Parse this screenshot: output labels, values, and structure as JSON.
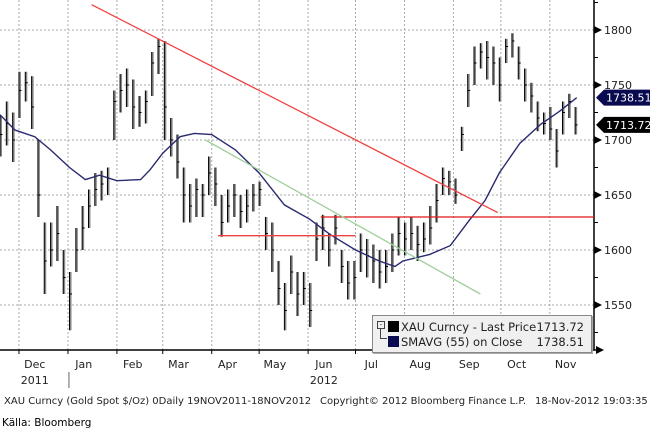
{
  "chart_data": {
    "type": "bar",
    "subtype": "ohlc-price-bars",
    "title": "XAU Curncy (Gold Spot $/Oz) 0Daily 19NOV2011-18NOV2012",
    "ylabel": "",
    "ylim": [
      1510,
      1828
    ],
    "yticks": [
      1550,
      1600,
      1650,
      1700,
      1750,
      1800
    ],
    "x_unit": "days since 19-Nov-2011",
    "xlim": [
      0,
      368
    ],
    "months": [
      {
        "label": "Dec",
        "day": 22
      },
      {
        "label": "Jan",
        "day": 53
      },
      {
        "label": "Feb",
        "day": 84
      },
      {
        "label": "Mar",
        "day": 113
      },
      {
        "label": "Apr",
        "day": 144
      },
      {
        "label": "May",
        "day": 174
      },
      {
        "label": "Jun",
        "day": 205
      },
      {
        "label": "Jul",
        "day": 235
      },
      {
        "label": "Aug",
        "day": 266
      },
      {
        "label": "Sep",
        "day": 297
      },
      {
        "label": "Oct",
        "day": 327
      },
      {
        "label": "Nov",
        "day": 358
      }
    ],
    "years": [
      {
        "label": "2011",
        "day": 22
      },
      {
        "label": "2012",
        "day": 205
      }
    ],
    "grid_days": [
      12,
      43,
      74,
      103,
      134,
      164,
      195,
      225,
      256,
      287,
      317,
      348
    ],
    "grid": true,
    "bar_day_step": 4,
    "bars": {
      "low": [
        1685,
        1695,
        1680,
        1720,
        1735,
        1710,
        1630,
        1560,
        1585,
        1590,
        1560,
        1527,
        1580,
        1600,
        1620,
        1640,
        1645,
        1650,
        1700,
        1725,
        1730,
        1710,
        1712,
        1715,
        1740,
        1760,
        1700,
        1685,
        1665,
        1625,
        1625,
        1630,
        1630,
        1650,
        1640,
        1612,
        1625,
        1630,
        1620,
        1625,
        1635,
        1640,
        1600,
        1580,
        1550,
        1527,
        1560,
        1540,
        1550,
        1530,
        1590,
        1600,
        1585,
        1605,
        1570,
        1555,
        1555,
        1580,
        1575,
        1570,
        1565,
        1570,
        1580,
        1595,
        1595,
        1600,
        1590,
        1598,
        1605,
        1625,
        1650,
        1650,
        1642,
        1690,
        1730,
        1750,
        1765,
        1755,
        1750,
        1735,
        1770,
        1775,
        1755,
        1735,
        1725,
        1708,
        1705,
        1700,
        1675,
        1705,
        1720,
        1705
      ],
      "high": [
        1722,
        1735,
        1725,
        1762,
        1762,
        1758,
        1700,
        1625,
        1625,
        1640,
        1600,
        1580,
        1620,
        1640,
        1655,
        1670,
        1672,
        1675,
        1745,
        1760,
        1765,
        1755,
        1740,
        1745,
        1780,
        1792,
        1790,
        1720,
        1705,
        1675,
        1660,
        1665,
        1660,
        1685,
        1675,
        1650,
        1655,
        1660,
        1650,
        1655,
        1660,
        1662,
        1630,
        1625,
        1590,
        1570,
        1595,
        1580,
        1580,
        1570,
        1625,
        1632,
        1615,
        1632,
        1600,
        1590,
        1590,
        1615,
        1610,
        1605,
        1600,
        1600,
        1615,
        1630,
        1625,
        1630,
        1622,
        1625,
        1640,
        1660,
        1675,
        1672,
        1665,
        1712,
        1760,
        1785,
        1788,
        1790,
        1785,
        1775,
        1792,
        1797,
        1785,
        1765,
        1752,
        1735,
        1725,
        1730,
        1710,
        1735,
        1742,
        1730
      ],
      "close": [
        1705,
        1715,
        1700,
        1745,
        1752,
        1730,
        1650,
        1590,
        1600,
        1615,
        1575,
        1560,
        1600,
        1620,
        1640,
        1655,
        1660,
        1665,
        1735,
        1745,
        1750,
        1730,
        1725,
        1735,
        1770,
        1785,
        1730,
        1700,
        1680,
        1650,
        1640,
        1655,
        1650,
        1670,
        1660,
        1625,
        1640,
        1650,
        1635,
        1640,
        1650,
        1655,
        1615,
        1600,
        1565,
        1545,
        1580,
        1560,
        1565,
        1545,
        1610,
        1620,
        1600,
        1620,
        1585,
        1570,
        1575,
        1600,
        1595,
        1590,
        1580,
        1585,
        1600,
        1615,
        1610,
        1615,
        1605,
        1610,
        1620,
        1645,
        1665,
        1662,
        1650,
        1705,
        1745,
        1770,
        1780,
        1775,
        1770,
        1750,
        1785,
        1790,
        1770,
        1750,
        1740,
        1720,
        1715,
        1710,
        1690,
        1725,
        1735,
        1713.72
      ]
    },
    "sma_series": {
      "days": [
        0,
        9.5,
        22,
        32,
        44,
        54,
        63,
        74,
        89,
        95,
        103,
        114,
        123,
        134,
        149,
        164,
        180,
        196,
        209,
        225,
        240,
        250,
        255,
        272,
        285,
        297,
        307,
        316,
        329,
        342,
        354,
        365
      ],
      "values": [
        1723,
        1709,
        1703,
        1691,
        1675,
        1664,
        1668,
        1663,
        1664,
        1673,
        1688,
        1703,
        1706,
        1705,
        1691,
        1670,
        1641,
        1628,
        1614,
        1600,
        1590,
        1585,
        1590,
        1596,
        1604,
        1627,
        1645,
        1670,
        1697,
        1714,
        1726,
        1738.51
      ]
    },
    "trendlines": [
      {
        "name": "resistance-downtrend",
        "color": "#f04040",
        "from": [
          58,
          1823
        ],
        "to": [
          315,
          1634
        ]
      },
      {
        "name": "support-1613",
        "color": "#f04040",
        "from": [
          138,
          1613
        ],
        "to": [
          225,
          1613
        ]
      },
      {
        "name": "level-1630",
        "color": "#e01818",
        "from": [
          203,
          1630
        ],
        "to": [
          376,
          1630
        ]
      },
      {
        "name": "green-channel",
        "color": "#9fd09a",
        "from": [
          130,
          1700
        ],
        "to": [
          304,
          1560
        ]
      }
    ],
    "legend": {
      "placement": "bottom-right",
      "entries": [
        {
          "label": "XAU Curncy - Last Price",
          "value": "1713.72",
          "color": "#000000"
        },
        {
          "label": "SMAVG (55) on Close",
          "value": "1738.51",
          "color": "#0a0a50"
        }
      ]
    },
    "price_tags": [
      {
        "value": "1738.51",
        "price": 1738.51,
        "color": "#0a0a50"
      },
      {
        "value": "1713.72",
        "price": 1713.72,
        "color": "#000000"
      }
    ]
  },
  "footer": {
    "series_info": "XAU Curncy (Gold Spot  $/Oz) 0Daily 19NOV2011-18NOV2012",
    "copyright": "Copyright© 2012 Bloomberg Finance L.P.",
    "timestamp": "18-Nov-2012 19:03:35",
    "source": "Källa: Bloomberg"
  },
  "colors": {
    "bar": "#000000",
    "bar_shadow": "#888888",
    "sma": "#2a2a70",
    "grid": "#aaaaaa"
  }
}
